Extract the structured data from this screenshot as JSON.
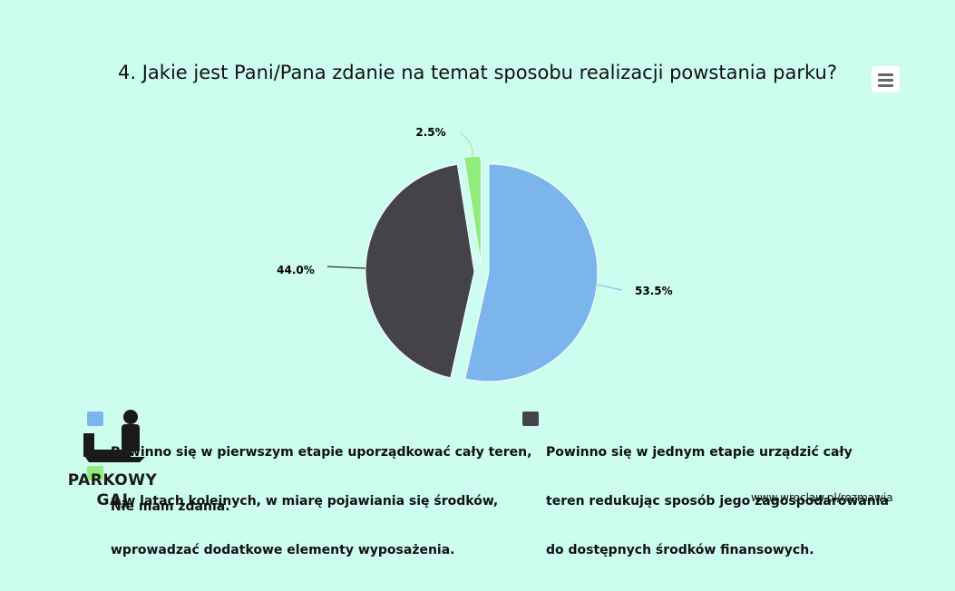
{
  "chart_data": {
    "type": "pie",
    "title": "4. Jakie jest Pani/Pana zdanie na temat sposobu realizacji powstania parku?",
    "slices": [
      {
        "name": "Powinno się w pierwszym etapie uporządkować cały teren, a w latach kolejnych, w miarę pojawiania się środków, wprowadzać dodatkowe elementy wyposażenia.",
        "value": 53.5,
        "label": "53.5%",
        "color": "#7cb5ec"
      },
      {
        "name": "Powinno się w jednym etapie urządzić cały teren redukując sposób jego zagospodarowania do dostępnych środków finansowych.",
        "value": 44.0,
        "label": "44.0%",
        "color": "#434348"
      },
      {
        "name": "Nie mam zdania.",
        "value": 2.5,
        "label": "2.5%",
        "color": "#90ed7d"
      }
    ],
    "legend": {
      "placement": "bottom",
      "items": [
        {
          "lines": [
            "Powinno się w pierwszym etapie uporządkować cały teren,",
            "a w latach kolejnych, w miarę pojawiania się środków,",
            "wprowadzać dodatkowe elementy wyposażenia."
          ],
          "color": "#7cb5ec"
        },
        {
          "lines": [
            "Powinno się w jednym etapie urządzić cały",
            "teren redukując sposób jego zagospodarowania",
            "do dostępnych środków finansowych."
          ],
          "color": "#434348"
        },
        {
          "lines": [
            "Nie mam zdania."
          ],
          "color": "#90ed7d"
        }
      ]
    }
  },
  "logo": {
    "line1": "PARKOWY",
    "line2": "GAJ"
  },
  "credit": "www.wroclaw.pl/rozmawia",
  "colors": {
    "background": "#ccfdef",
    "menu_icon": "#666666"
  },
  "icons": {
    "menu": "hamburger-menu-icon"
  }
}
